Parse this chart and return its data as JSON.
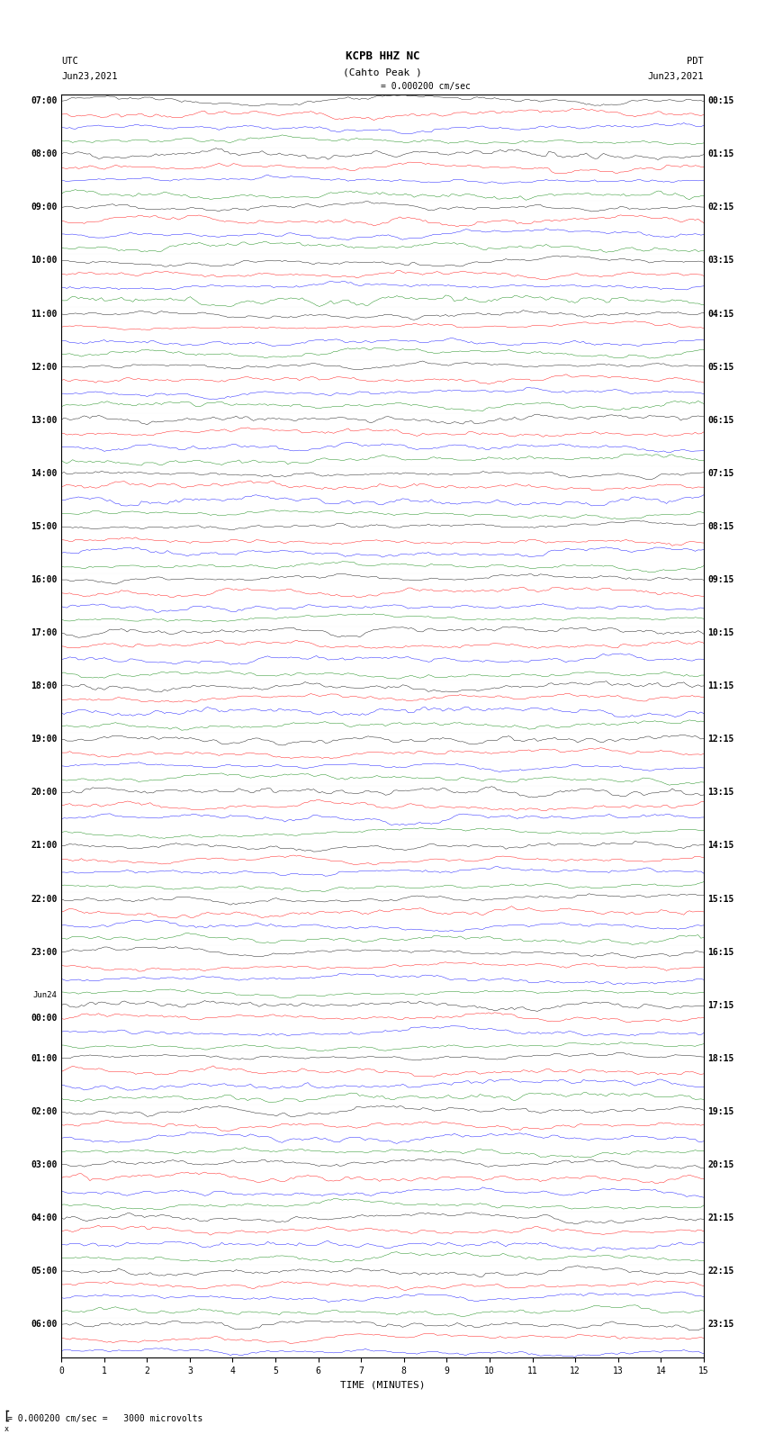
{
  "title": "KCPB HHZ NC",
  "subtitle": "(Cahto Peak )",
  "scale_label": "= 0.000200 cm/sec",
  "footer_label": "= 0.000200 cm/sec =   3000 microvolts",
  "utc_label": "UTC",
  "pdt_label": "PDT",
  "date_left": "Jun23,2021",
  "date_right": "Jun23,2021",
  "time_minutes": 15,
  "xlabel": "TIME (MINUTES)",
  "xticks": [
    0,
    1,
    2,
    3,
    4,
    5,
    6,
    7,
    8,
    9,
    10,
    11,
    12,
    13,
    14,
    15
  ],
  "left_times": [
    "07:00",
    "",
    "",
    "",
    "08:00",
    "",
    "",
    "",
    "09:00",
    "",
    "",
    "",
    "10:00",
    "",
    "",
    "",
    "11:00",
    "",
    "",
    "",
    "12:00",
    "",
    "",
    "",
    "13:00",
    "",
    "",
    "",
    "14:00",
    "",
    "",
    "",
    "15:00",
    "",
    "",
    "",
    "16:00",
    "",
    "",
    "",
    "17:00",
    "",
    "",
    "",
    "18:00",
    "",
    "",
    "",
    "19:00",
    "",
    "",
    "",
    "20:00",
    "",
    "",
    "",
    "21:00",
    "",
    "",
    "",
    "22:00",
    "",
    "",
    "",
    "23:00",
    "",
    "",
    "",
    "Jun24",
    "00:00",
    "",
    "",
    "01:00",
    "",
    "",
    "",
    "02:00",
    "",
    "",
    "",
    "03:00",
    "",
    "",
    "",
    "04:00",
    "",
    "",
    "",
    "05:00",
    "",
    "",
    "",
    "06:00",
    "",
    ""
  ],
  "right_times": [
    "00:15",
    "",
    "",
    "",
    "01:15",
    "",
    "",
    "",
    "02:15",
    "",
    "",
    "",
    "03:15",
    "",
    "",
    "",
    "04:15",
    "",
    "",
    "",
    "05:15",
    "",
    "",
    "",
    "06:15",
    "",
    "",
    "",
    "07:15",
    "",
    "",
    "",
    "08:15",
    "",
    "",
    "",
    "09:15",
    "",
    "",
    "",
    "10:15",
    "",
    "",
    "",
    "11:15",
    "",
    "",
    "",
    "12:15",
    "",
    "",
    "",
    "13:15",
    "",
    "",
    "",
    "14:15",
    "",
    "",
    "",
    "15:15",
    "",
    "",
    "",
    "16:15",
    "",
    "",
    "",
    "17:15",
    "",
    "",
    "",
    "18:15",
    "",
    "",
    "",
    "19:15",
    "",
    "",
    "",
    "20:15",
    "",
    "",
    "",
    "21:15",
    "",
    "",
    "",
    "22:15",
    "",
    "",
    "",
    "23:15",
    "",
    ""
  ],
  "trace_colors": [
    "black",
    "red",
    "blue",
    "green"
  ],
  "n_rows": 95,
  "fig_width": 8.5,
  "fig_height": 16.13,
  "bg_color": "white",
  "trace_linewidth": 0.3,
  "noise_seed": 42
}
